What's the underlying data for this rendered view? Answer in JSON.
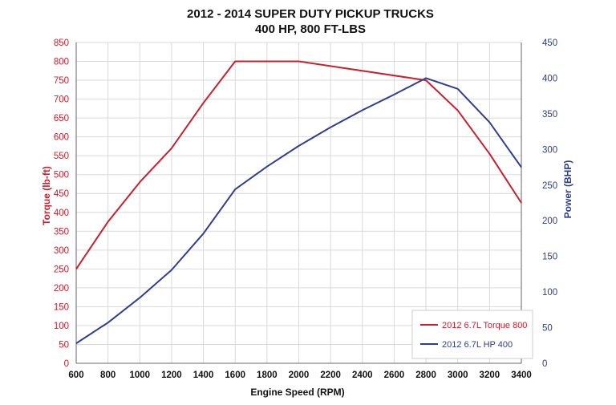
{
  "chart_data": {
    "type": "line",
    "title": "2012 - 2014 SUPER DUTY PICKUP TRUCKS",
    "subtitle": "400 HP, 800 FT-LBS",
    "xlabel": "Engine Speed (RPM)",
    "ylabel_left": "Torque (lb-ft)",
    "ylabel_right": "Power (BHP)",
    "x_ticks": [
      "600",
      "800",
      "1000",
      "1200",
      "1400",
      "1600",
      "1800",
      "2000",
      "2200",
      "2400",
      "2600",
      "2800",
      "3000",
      "3200",
      "3400"
    ],
    "xlim": [
      600,
      3400
    ],
    "ylim_left": [
      0,
      850
    ],
    "ylim_right": [
      0,
      450
    ],
    "y_ticks_left": [
      "0",
      "50",
      "100",
      "150",
      "200",
      "250",
      "300",
      "350",
      "400",
      "450",
      "500",
      "550",
      "600",
      "650",
      "700",
      "750",
      "800",
      "850"
    ],
    "y_ticks_right": [
      "0",
      "50",
      "100",
      "150",
      "200",
      "250",
      "300",
      "350",
      "400",
      "450"
    ],
    "grid": true,
    "legend_position": "bottom-right",
    "series": [
      {
        "name": "2012 6.7L Torque 800",
        "axis": "left",
        "color": "#c8202e",
        "x": [
          600,
          800,
          1000,
          1200,
          1400,
          1600,
          2000,
          2800,
          3000,
          3200,
          3400
        ],
        "y": [
          250,
          375,
          480,
          570,
          690,
          800,
          800,
          750,
          670,
          555,
          425
        ]
      },
      {
        "name": "2012 6.7L HP 400",
        "axis": "right",
        "color": "#2d3f8f",
        "x": [
          600,
          800,
          1000,
          1200,
          1400,
          1600,
          1800,
          2000,
          2200,
          2400,
          2600,
          2800,
          3000,
          3200,
          3400
        ],
        "y": [
          28,
          57,
          92,
          131,
          182,
          244,
          276,
          305,
          331,
          355,
          377,
          400,
          385,
          338,
          275
        ]
      }
    ]
  }
}
